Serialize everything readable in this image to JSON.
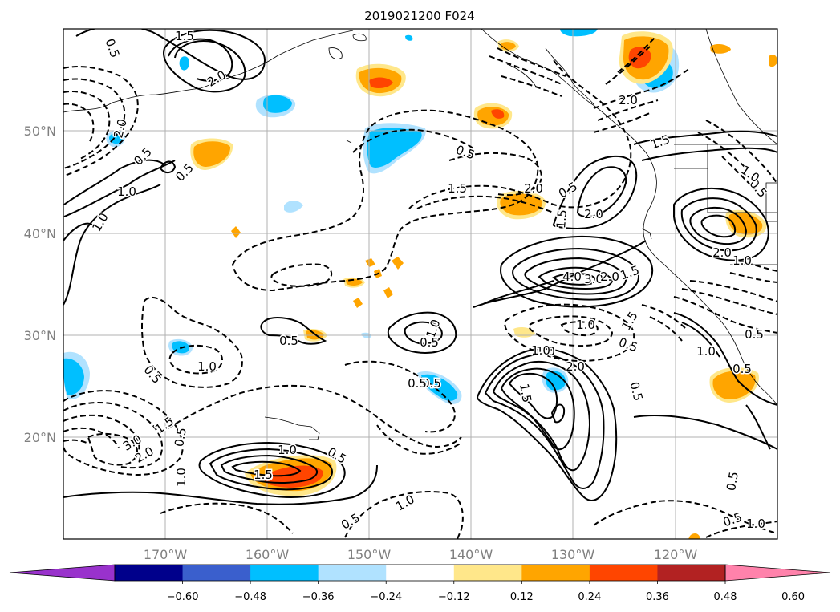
{
  "title": "2019021200 F024",
  "lat_labels": [
    "50°N",
    "40°N",
    "30°N",
    "20°N"
  ],
  "lon_labels": [
    "170°W",
    "160°W",
    "150°W",
    "140°W",
    "130°W",
    "120°W"
  ],
  "colorbar": {
    "ticks": [
      "−0.60",
      "−0.48",
      "−0.36",
      "−0.24",
      "−0.12",
      "0.12",
      "0.24",
      "0.36",
      "0.48",
      "0.60"
    ],
    "colors": [
      "#9932CC",
      "#00008B",
      "#3A5FCD",
      "#00BFFF",
      "#B0E2FF",
      "#FFFFFF",
      "#FFE78A",
      "#FFA500",
      "#FF4500",
      "#B22222",
      "#FF82AB"
    ]
  },
  "contour_labels": [
    "1.5",
    "2.0",
    "1.0",
    "0.5",
    "2.0",
    "1.0",
    "0.5",
    "0.5",
    "1.0",
    "1.5",
    "0.5",
    "1.5",
    "2.0",
    "1.5",
    "2.0",
    "0.5",
    "2.0",
    "0.5",
    "1.5",
    "0.5",
    "1.0",
    "2.0",
    "1.0",
    "4.0",
    "3.0",
    "2.0",
    "1.5",
    "1.0",
    "1.5",
    "1.0",
    "0.5",
    "1.0",
    "0.5",
    "0.5",
    "1.0",
    "2.0",
    "1.5",
    "0.5",
    "0.5",
    "1.0",
    "0.5",
    "3.0",
    "2.0",
    "0.5",
    "1.5",
    "1.0",
    "0.5",
    "0.5",
    "1.0",
    "1.5",
    "1.0",
    "0.5",
    "0.5",
    "0.5",
    "0.5",
    "1.0"
  ]
}
